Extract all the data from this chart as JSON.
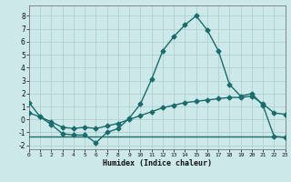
{
  "title": "",
  "xlabel": "Humidex (Indice chaleur)",
  "ylabel": "",
  "bg_color": "#cce8e8",
  "grid_color": "#b0d0d0",
  "line_color": "#1a6b6b",
  "line1_x": [
    0,
    1,
    2,
    3,
    4,
    5,
    6,
    7,
    8,
    9,
    10,
    11,
    12,
    13,
    14,
    15,
    16,
    17,
    18,
    19,
    20,
    21,
    22,
    23
  ],
  "line1_y": [
    1.3,
    0.2,
    -0.4,
    -1.1,
    -1.2,
    -1.2,
    -1.8,
    -1.0,
    -0.7,
    0.1,
    1.2,
    3.1,
    5.3,
    6.4,
    7.3,
    8.0,
    6.9,
    5.3,
    2.7,
    1.8,
    2.0,
    1.1,
    -1.3,
    -1.4
  ],
  "line2_x": [
    0,
    1,
    2,
    3,
    4,
    5,
    6,
    7,
    8,
    9,
    10,
    11,
    12,
    13,
    14,
    15,
    16,
    17,
    18,
    19,
    20,
    21,
    22,
    23
  ],
  "line2_y": [
    0.5,
    0.2,
    -0.2,
    -0.6,
    -0.7,
    -0.6,
    -0.7,
    -0.5,
    -0.3,
    0.0,
    0.3,
    0.6,
    0.9,
    1.1,
    1.3,
    1.4,
    1.5,
    1.6,
    1.7,
    1.7,
    1.8,
    1.2,
    0.5,
    0.4
  ],
  "line3_x": [
    0,
    1,
    2,
    3,
    4,
    5,
    6,
    7,
    8,
    9,
    10,
    11,
    12,
    13,
    14,
    15,
    16,
    17,
    18,
    19,
    20,
    21,
    22,
    23
  ],
  "line3_y": [
    -1.3,
    -1.3,
    -1.3,
    -1.3,
    -1.3,
    -1.3,
    -1.3,
    -1.3,
    -1.3,
    -1.3,
    -1.3,
    -1.3,
    -1.3,
    -1.3,
    -1.3,
    -1.3,
    -1.3,
    -1.3,
    -1.3,
    -1.3,
    -1.3,
    -1.3,
    -1.3,
    -1.3
  ],
  "xlim": [
    0,
    23
  ],
  "ylim": [
    -2.3,
    8.8
  ],
  "yticks": [
    -2,
    -1,
    0,
    1,
    2,
    3,
    4,
    5,
    6,
    7,
    8
  ],
  "xticks": [
    0,
    1,
    2,
    3,
    4,
    5,
    6,
    7,
    8,
    9,
    10,
    11,
    12,
    13,
    14,
    15,
    16,
    17,
    18,
    19,
    20,
    21,
    22,
    23
  ],
  "marker": "D",
  "markersize": 2.5,
  "linewidth": 1.0
}
